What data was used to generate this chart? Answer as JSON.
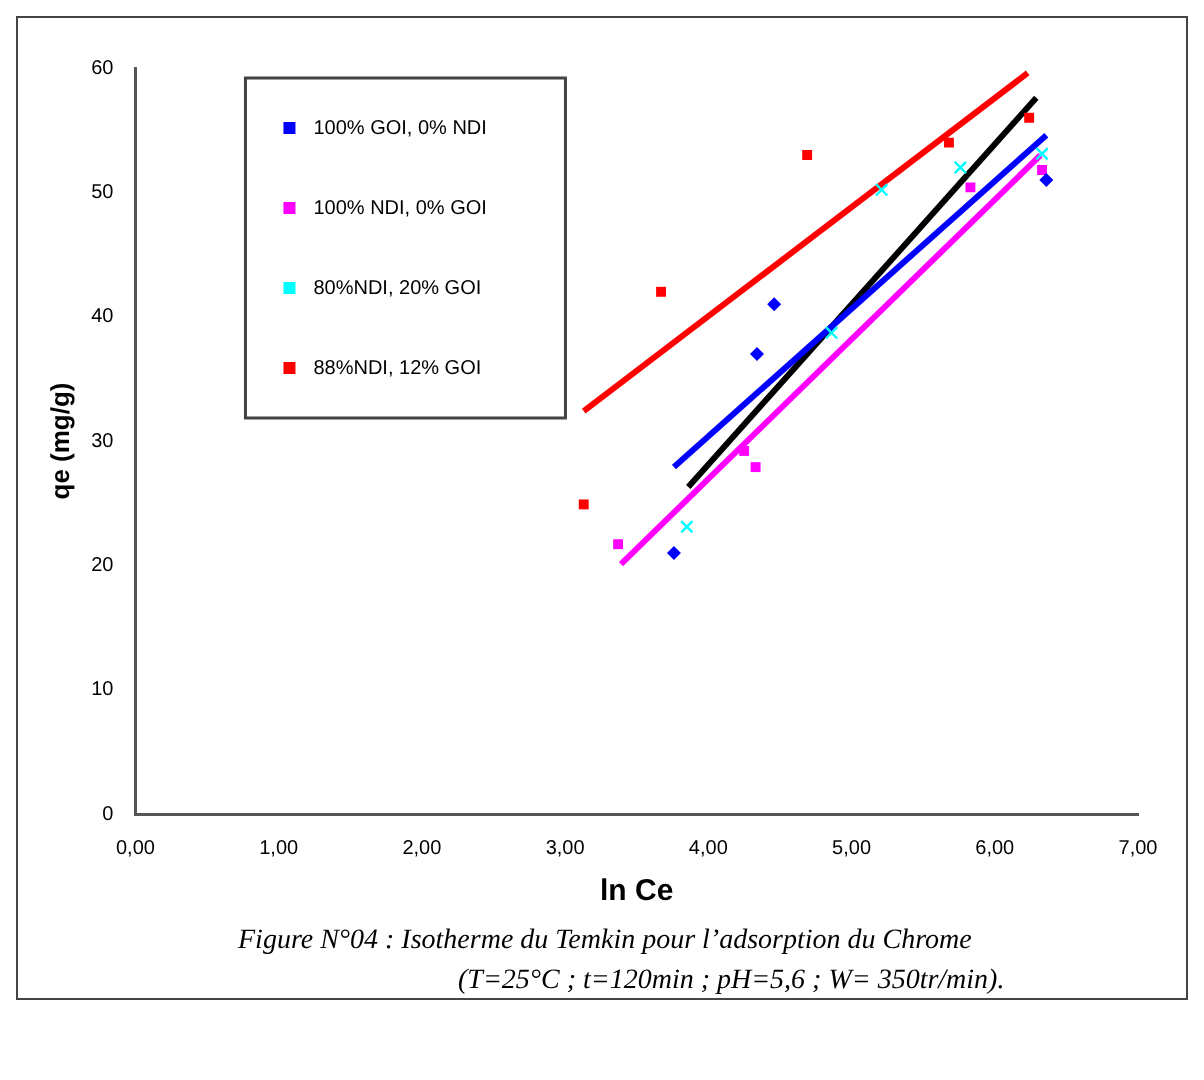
{
  "chart_data": {
    "type": "scatter",
    "xlabel": "ln Ce",
    "ylabel": "qe (mg/g)",
    "xlim": [
      0,
      7
    ],
    "xticks": [
      {
        "value": 0,
        "label": "0,00"
      },
      {
        "value": 1,
        "label": "1,00"
      },
      {
        "value": 2,
        "label": "2,00"
      },
      {
        "value": 3,
        "label": "3,00"
      },
      {
        "value": 4,
        "label": "4,00"
      },
      {
        "value": 5,
        "label": "5,00"
      },
      {
        "value": 6,
        "label": "6,00"
      },
      {
        "value": 7,
        "label": "7,00"
      }
    ],
    "ylim": [
      0,
      60
    ],
    "yticks": [
      0,
      10,
      20,
      30,
      40,
      50,
      60
    ],
    "grid": false,
    "legend": "top left",
    "series": [
      {
        "name": "100% GOI, 0% NDI",
        "color": "#0000ff",
        "marker": "diamond",
        "x": [
          3.76,
          4.34,
          4.46,
          6.36
        ],
        "values": [
          21,
          37,
          41,
          51
        ]
      },
      {
        "name": "100% NDI, 0% GOI",
        "color": "#ff00ff",
        "marker": "square",
        "x": [
          3.37,
          4.25,
          4.33,
          5.83,
          6.33
        ],
        "values": [
          21.7,
          29.2,
          27.9,
          50.4,
          51.8
        ]
      },
      {
        "name": "80%NDI, 20% GOI",
        "color": "#00ffff",
        "marker": "cross",
        "x": [
          3.85,
          4.86,
          5.21,
          5.76,
          6.33
        ],
        "values": [
          23.1,
          38.7,
          50.2,
          52,
          53.1
        ]
      },
      {
        "name": "88%NDI, 12% GOI",
        "color": "#ff0000",
        "marker": "square",
        "x": [
          3.13,
          3.67,
          4.69,
          5.68,
          6.24
        ],
        "values": [
          24.9,
          42,
          53,
          54,
          56
        ]
      },
      {
        "type": "line",
        "color": "#0000ff",
        "x": [
          3.76,
          6.36
        ],
        "values": [
          27.9,
          54.6
        ]
      },
      {
        "type": "line",
        "color": "#ff00ff",
        "x": [
          3.39,
          6.32
        ],
        "values": [
          20.1,
          53
        ]
      },
      {
        "type": "line",
        "color": "#000000",
        "x": [
          3.86,
          6.29
        ],
        "values": [
          26.3,
          57.6
        ]
      },
      {
        "type": "line",
        "color": "#ff0000",
        "x": [
          3.13,
          6.23
        ],
        "values": [
          32.4,
          59.6
        ]
      }
    ],
    "annotations": [
      "Figure N°04   : Isotherme du Temkin pour l’adsorption du Chrome",
      "(T=25°C ; t=120min ; pH=5,6 ; W= 350tr/min)."
    ]
  }
}
